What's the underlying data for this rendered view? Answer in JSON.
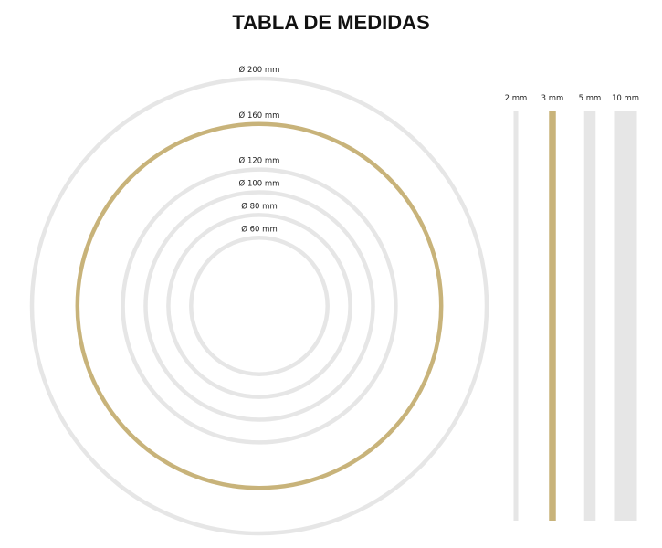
{
  "title": "TABLA DE MEDIDAS",
  "colors": {
    "gold": "#c8b37a",
    "gray": "#e6e6e6"
  },
  "diameters": [
    {
      "label": "Ø 200 mm",
      "mm": 200,
      "color": "gray"
    },
    {
      "label": "Ø 160 mm",
      "mm": 160,
      "color": "gold"
    },
    {
      "label": "Ø 120 mm",
      "mm": 120,
      "color": "gray"
    },
    {
      "label": "Ø 100 mm",
      "mm": 100,
      "color": "gray"
    },
    {
      "label": "Ø 80 mm",
      "mm": 80,
      "color": "gray"
    },
    {
      "label": "Ø 60 mm",
      "mm": 60,
      "color": "gray"
    }
  ],
  "thicknesses": [
    {
      "label": "2 mm",
      "mm": 2,
      "color": "gray"
    },
    {
      "label": "3 mm",
      "mm": 3,
      "color": "gold"
    },
    {
      "label": "5 mm",
      "mm": 5,
      "color": "gray"
    },
    {
      "label": "10 mm",
      "mm": 10,
      "color": "gray"
    }
  ]
}
